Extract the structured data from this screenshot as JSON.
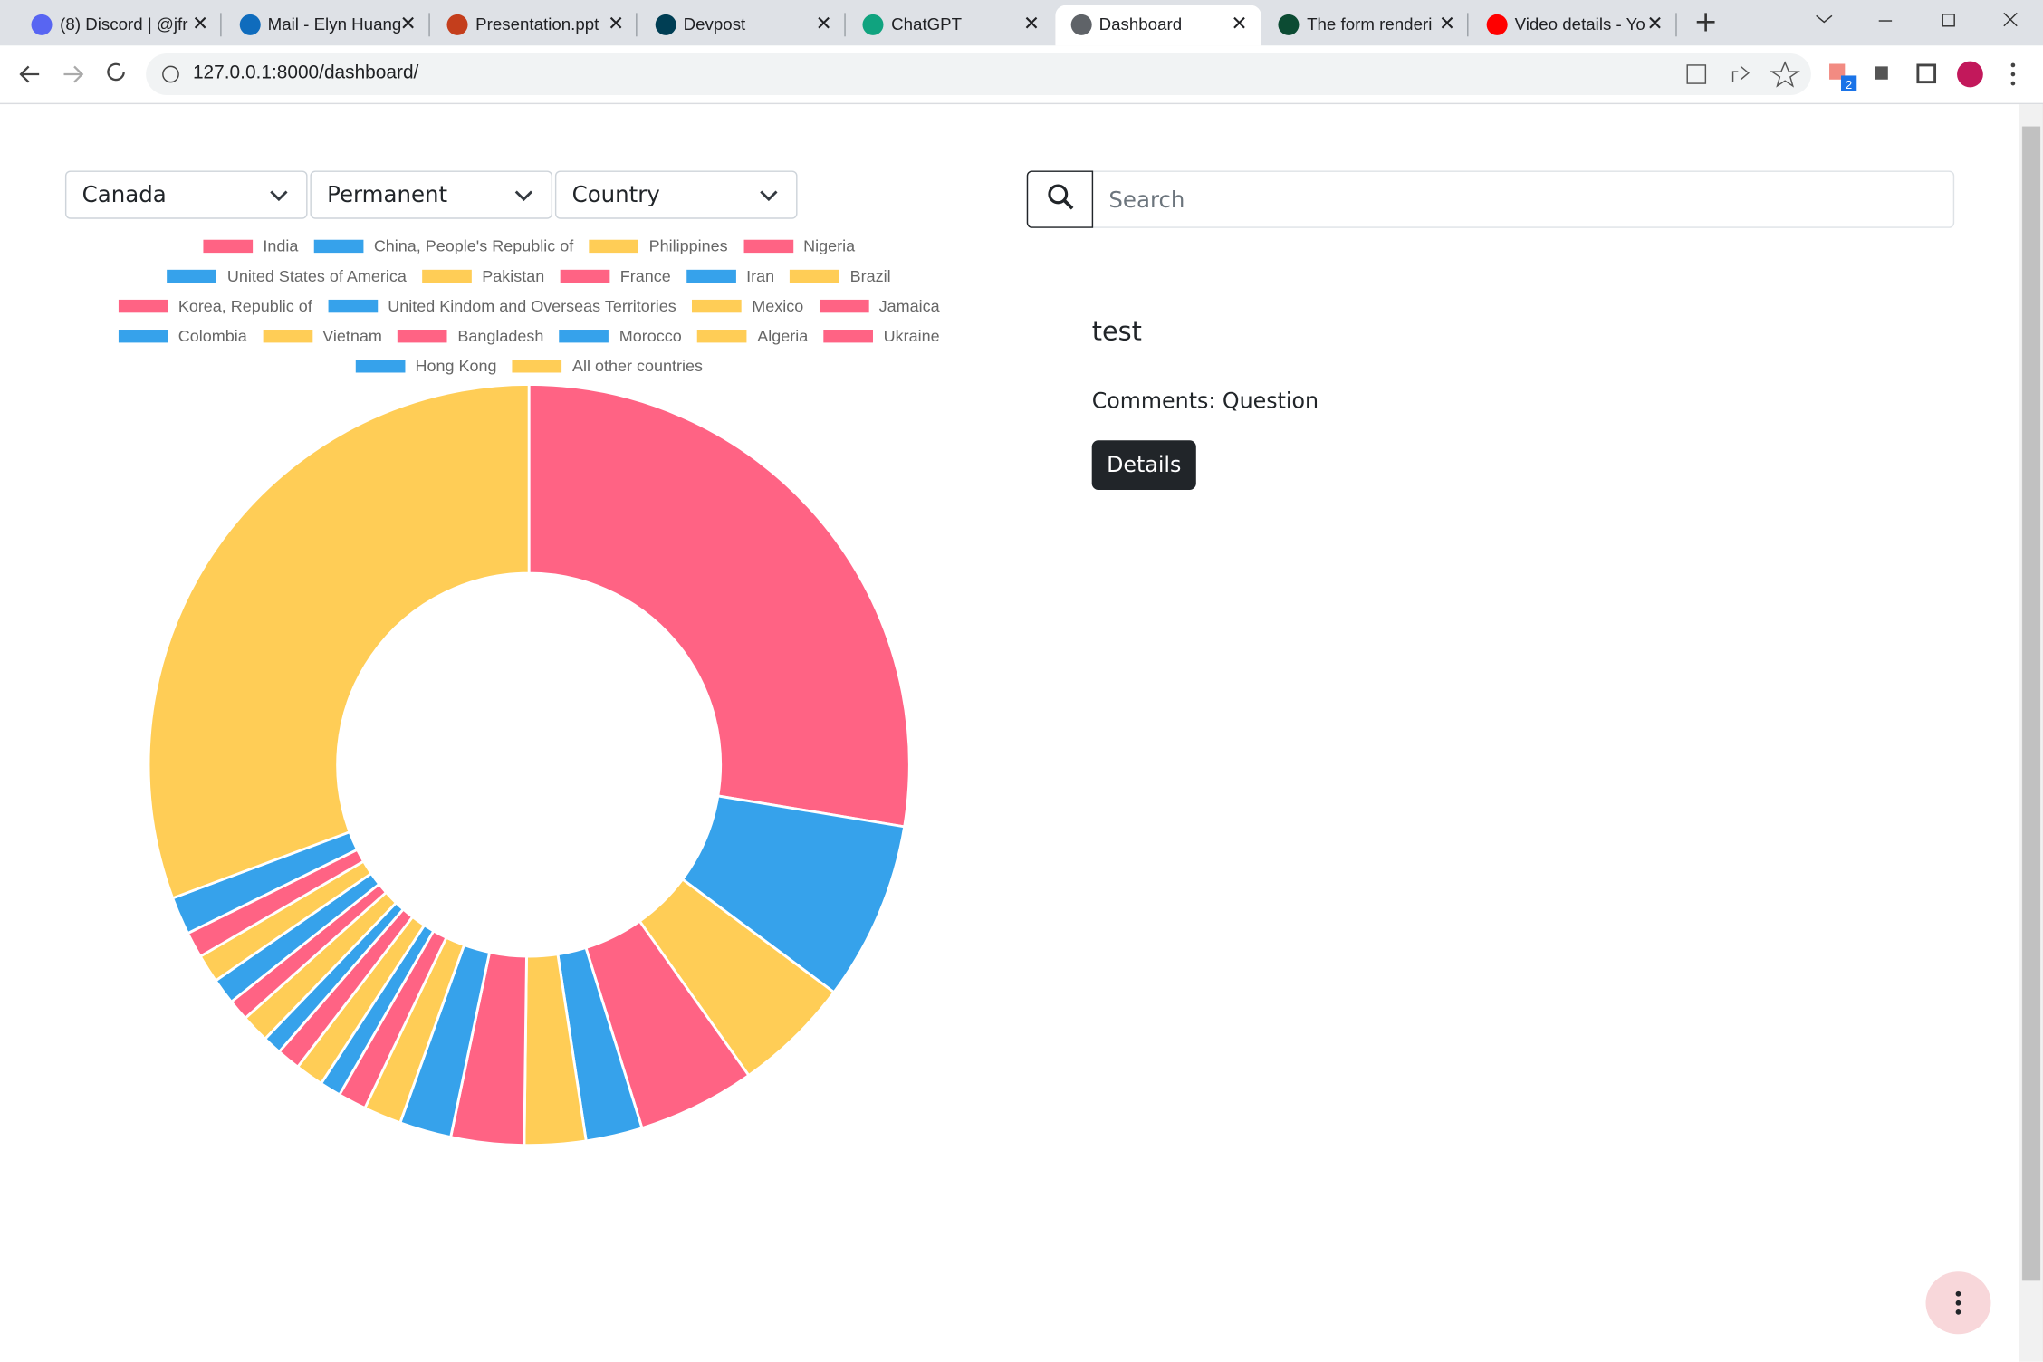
{
  "browser": {
    "tabs": [
      "(8) Discord | @jfr",
      "Mail - Elyn Huang",
      "Presentation.ppt",
      "Devpost",
      "ChatGPT",
      "Dashboard",
      "The form renderi",
      "Video details - Yo"
    ],
    "url": "127.0.0.1:8000/dashboard/",
    "extension_badge": "2"
  },
  "filters": [
    "Canada",
    "Permanent",
    "Country"
  ],
  "search": {
    "placeholder": "Search"
  },
  "chart_data": {
    "type": "doughnut",
    "categories": [
      "India",
      "China, People's Republic of",
      "Philippines",
      "Nigeria",
      "United States of America",
      "Pakistan",
      "France",
      "Iran",
      "Brazil",
      "Korea, Republic of",
      "United Kindom and Overseas Territories",
      "Mexico",
      "Jamaica",
      "Colombia",
      "Vietnam",
      "Bangladesh",
      "Morocco",
      "Algeria",
      "Ukraine",
      "Hong Kong",
      "All other countries"
    ],
    "values": [
      27.6,
      7.6,
      5.0,
      5.0,
      2.4,
      2.6,
      3.1,
      2.2,
      1.6,
      1.2,
      0.9,
      1.2,
      1.0,
      0.8,
      1.2,
      0.9,
      1.1,
      1.2,
      1.1,
      1.6,
      30.7
    ],
    "colors": [
      "#ff6384",
      "#36a2eb",
      "#ffcd56",
      "#ff6384",
      "#36a2eb",
      "#ffcd56",
      "#ff6384",
      "#36a2eb",
      "#ffcd56",
      "#ff6384",
      "#36a2eb",
      "#ffcd56",
      "#ff6384",
      "#36a2eb",
      "#ffcd56",
      "#ff6384",
      "#36a2eb",
      "#ffcd56",
      "#ff6384",
      "#36a2eb",
      "#ffcd56"
    ]
  },
  "card": {
    "title": "test",
    "comments": "Comments: Question",
    "button": "Details"
  }
}
